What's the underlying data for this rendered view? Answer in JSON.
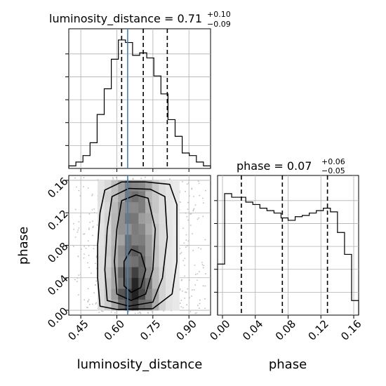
{
  "chart_data": [
    {
      "panel": "luminosity_distance marginal",
      "type": "histogram",
      "title": "luminosity_distance = 0.71",
      "title_parts": {
        "base": "luminosity_distance = 0.71",
        "sup": "+0.10",
        "sub": "−0.09"
      },
      "xlim": [
        0.4,
        0.99
      ],
      "x_ticks": [
        0.45,
        0.6,
        0.75,
        0.9
      ],
      "grid": true,
      "bin_edges": [
        0.4,
        0.4295,
        0.459,
        0.4885,
        0.518,
        0.5475,
        0.577,
        0.6065,
        0.636,
        0.6655,
        0.695,
        0.7245,
        0.754,
        0.7835,
        0.813,
        0.8425,
        0.872,
        0.9015,
        0.931,
        0.9605,
        0.99
      ],
      "counts": [
        0.02,
        0.05,
        0.1,
        0.2,
        0.42,
        0.62,
        0.85,
        1.0,
        0.98,
        0.88,
        0.9,
        0.86,
        0.72,
        0.58,
        0.38,
        0.25,
        0.12,
        0.1,
        0.05,
        0.02
      ],
      "quantiles": [
        0.62,
        0.71,
        0.81
      ],
      "truth": 0.645
    },
    {
      "panel": "phase marginal",
      "type": "histogram",
      "title": "phase = 0.07",
      "title_parts": {
        "base": "phase = 0.07",
        "sup": "+0.06",
        "sub": "−0.05"
      },
      "xlim": [
        -0.006,
        0.166
      ],
      "x_ticks": [
        0.0,
        0.04,
        0.08,
        0.12,
        0.16
      ],
      "grid": true,
      "bin_edges": [
        -0.006,
        0.0026,
        0.0112,
        0.0198,
        0.0284,
        0.037,
        0.0456,
        0.0542,
        0.0628,
        0.0714,
        0.08,
        0.0886,
        0.0972,
        0.1058,
        0.1144,
        0.123,
        0.1316,
        0.1402,
        0.1488,
        0.1574,
        0.166
      ],
      "counts": [
        0.42,
        1.0,
        0.97,
        0.97,
        0.93,
        0.91,
        0.88,
        0.86,
        0.84,
        0.8,
        0.78,
        0.81,
        0.82,
        0.84,
        0.86,
        0.88,
        0.85,
        0.68,
        0.5,
        0.12
      ],
      "quantiles": [
        0.023,
        0.073,
        0.128
      ]
    },
    {
      "panel": "2D joint",
      "type": "heatmap",
      "xlabel": "luminosity_distance",
      "ylabel": "phase",
      "xlim": [
        0.4,
        0.99
      ],
      "ylim": [
        -0.006,
        0.166
      ],
      "x_ticks": [
        0.45,
        0.6,
        0.75,
        0.9
      ],
      "y_ticks": [
        0.0,
        0.04,
        0.08,
        0.12,
        0.16
      ],
      "grid": true,
      "truth_x": 0.645,
      "contour_levels": 4,
      "contours": [
        [
          [
            0.53,
            0.005
          ],
          [
            0.52,
            0.04
          ],
          [
            0.52,
            0.08
          ],
          [
            0.53,
            0.12
          ],
          [
            0.55,
            0.148
          ],
          [
            0.62,
            0.158
          ],
          [
            0.72,
            0.158
          ],
          [
            0.82,
            0.155
          ],
          [
            0.85,
            0.13
          ],
          [
            0.85,
            0.06
          ],
          [
            0.83,
            0.02
          ],
          [
            0.75,
            0.002
          ],
          [
            0.6,
            0.001
          ]
        ],
        [
          [
            0.56,
            0.012
          ],
          [
            0.55,
            0.05
          ],
          [
            0.56,
            0.1
          ],
          [
            0.58,
            0.14
          ],
          [
            0.65,
            0.15
          ],
          [
            0.74,
            0.149
          ],
          [
            0.8,
            0.14
          ],
          [
            0.81,
            0.09
          ],
          [
            0.79,
            0.04
          ],
          [
            0.75,
            0.01
          ],
          [
            0.65,
            0.005
          ]
        ],
        [
          [
            0.6,
            0.02
          ],
          [
            0.59,
            0.06
          ],
          [
            0.6,
            0.1
          ],
          [
            0.62,
            0.135
          ],
          [
            0.68,
            0.142
          ],
          [
            0.73,
            0.138
          ],
          [
            0.76,
            0.1
          ],
          [
            0.75,
            0.05
          ],
          [
            0.72,
            0.02
          ],
          [
            0.66,
            0.012
          ]
        ],
        [
          [
            0.63,
            0.03
          ],
          [
            0.63,
            0.06
          ],
          [
            0.66,
            0.075
          ],
          [
            0.7,
            0.07
          ],
          [
            0.72,
            0.05
          ],
          [
            0.7,
            0.028
          ],
          [
            0.66,
            0.022
          ]
        ]
      ]
    }
  ]
}
